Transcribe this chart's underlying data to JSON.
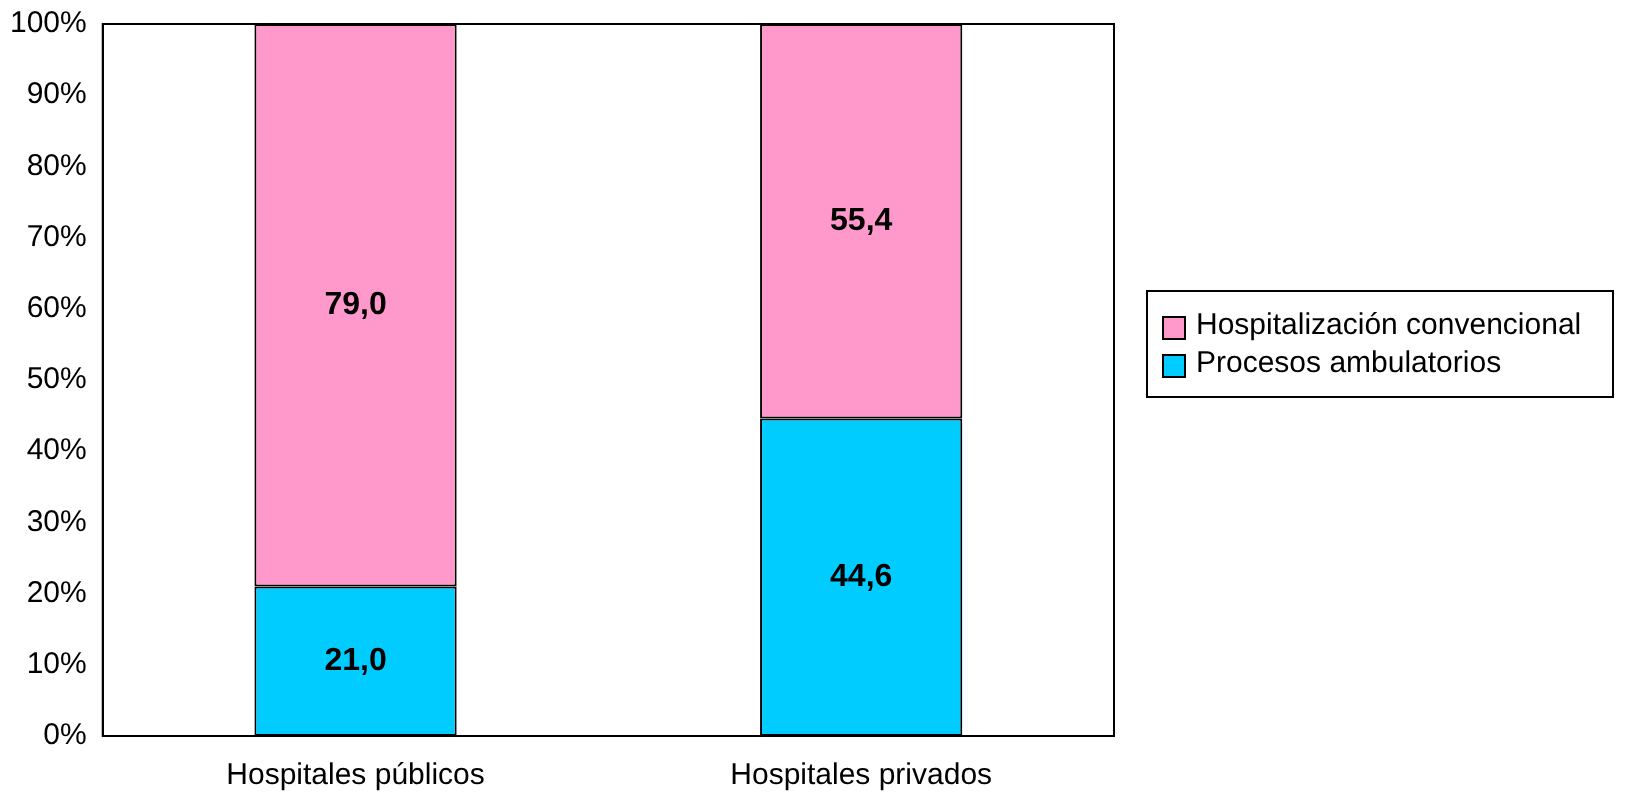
{
  "chart_data": {
    "type": "bar",
    "stacked": true,
    "categories": [
      "Hospitales públicos",
      "Hospitales privados"
    ],
    "series": [
      {
        "name": "Procesos ambulatorios",
        "color": "#00ccff",
        "values": [
          21.0,
          44.6
        ],
        "value_labels": [
          "21,0",
          "44,6"
        ]
      },
      {
        "name": "Hospitalización convencional",
        "color": "#ff99cc",
        "values": [
          79.0,
          55.4
        ],
        "value_labels": [
          "79,0",
          "55,4"
        ]
      }
    ],
    "ylim": [
      0,
      100
    ],
    "yticks": [
      {
        "value": 0,
        "label": "0%"
      },
      {
        "value": 10,
        "label": "10%"
      },
      {
        "value": 20,
        "label": "20%"
      },
      {
        "value": 30,
        "label": "30%"
      },
      {
        "value": 40,
        "label": "40%"
      },
      {
        "value": 50,
        "label": "50%"
      },
      {
        "value": 60,
        "label": "60%"
      },
      {
        "value": 70,
        "label": "70%"
      },
      {
        "value": 80,
        "label": "80%"
      },
      {
        "value": 90,
        "label": "90%"
      },
      {
        "value": 100,
        "label": "100%"
      }
    ],
    "grid": false,
    "legend": "right"
  }
}
